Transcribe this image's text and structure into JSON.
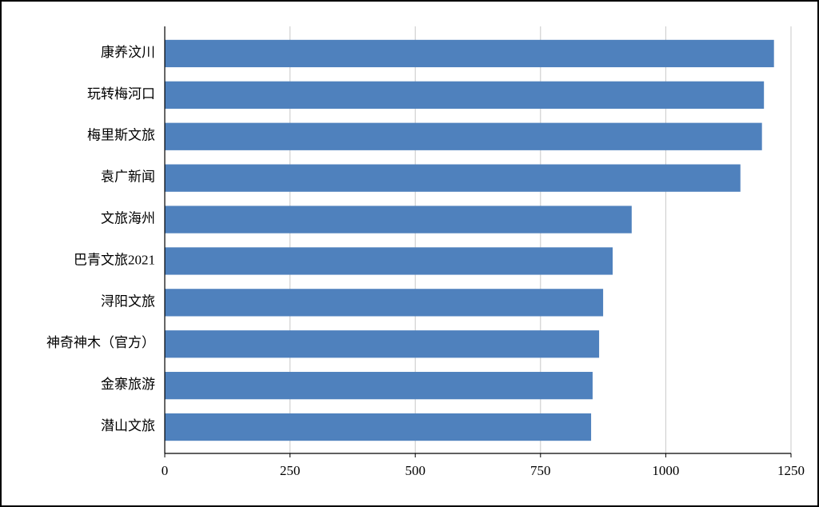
{
  "chart_data": {
    "type": "hbar",
    "categories": [
      "康养汶川",
      "玩转梅河口",
      "梅里斯文旅",
      "袁广新闻",
      "文旅海州",
      "巴青文旅2021",
      "浔阳文旅",
      "神奇神木（官方）",
      "金寨旅游",
      "潜山文旅"
    ],
    "values": [
      1216,
      1196,
      1192,
      1149,
      932,
      894,
      875,
      867,
      854,
      851
    ],
    "color": "#4f81bd",
    "xlim": [
      0,
      1250
    ],
    "xticks": [
      0,
      250,
      500,
      750,
      1000,
      1250
    ],
    "grid": true
  }
}
